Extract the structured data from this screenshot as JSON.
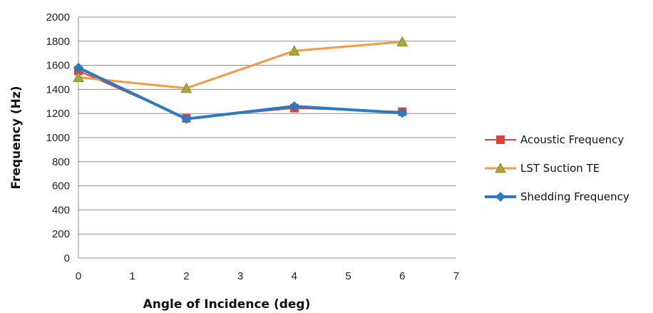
{
  "chart_data": {
    "type": "line",
    "title": "",
    "xlabel": "Angle of Incidence  (deg)",
    "ylabel": "Frequency (Hz)",
    "xlim": [
      0,
      7
    ],
    "ylim": [
      0,
      2000
    ],
    "x_ticks": [
      "0",
      "1",
      "2",
      "3",
      "4",
      "5",
      "6",
      "7"
    ],
    "y_ticks": [
      "0",
      "200",
      "400",
      "600",
      "800",
      "1000",
      "1200",
      "1400",
      "1600",
      "1800",
      "2000"
    ],
    "grid": "horizontal",
    "legend_position": "right",
    "series": [
      {
        "name": "Acoustic Frequency",
        "color": "#d9443f",
        "marker": "square",
        "line_width": 2,
        "points": [
          {
            "x": 0,
            "y": 1555
          },
          {
            "x": 2,
            "y": 1160
          },
          {
            "x": 4,
            "y": 1245
          },
          {
            "x": 6,
            "y": 1215
          }
        ]
      },
      {
        "name": "LST Suction TE",
        "color": "#f79a46",
        "marker": "triangle",
        "line_width": 3,
        "points": [
          {
            "x": 0,
            "y": 1500
          },
          {
            "x": 2,
            "y": 1410
          },
          {
            "x": 4,
            "y": 1720
          },
          {
            "x": 6,
            "y": 1795
          }
        ]
      },
      {
        "name": "Shedding Frequency",
        "color": "#2b79c2",
        "marker": "diamond",
        "line_width": 4,
        "points": [
          {
            "x": 0,
            "y": 1580
          },
          {
            "x": 2,
            "y": 1155
          },
          {
            "x": 4,
            "y": 1260
          },
          {
            "x": 6,
            "y": 1205
          }
        ]
      }
    ]
  }
}
